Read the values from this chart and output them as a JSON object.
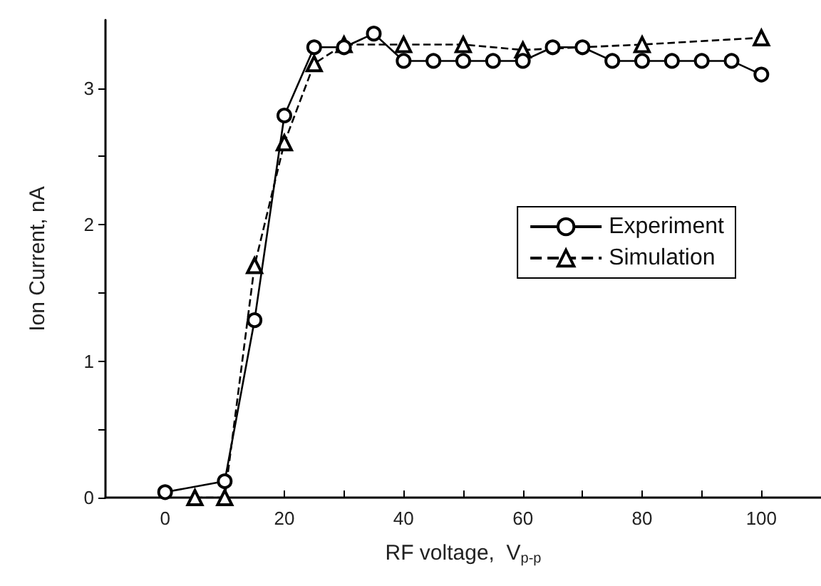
{
  "chart_data": {
    "type": "line",
    "xlabel": "RF voltage,  V$_{p-p}$",
    "ylabel": "Ion Current, nA",
    "xlim": [
      -10,
      110
    ],
    "ylim": [
      0,
      3.5
    ],
    "xticks": [
      0,
      {
        "value": 10,
        "label": null
      },
      20,
      {
        "value": 30,
        "label": null
      },
      40,
      {
        "value": 50,
        "label": null
      },
      60,
      {
        "value": 70,
        "label": null
      },
      80,
      {
        "value": 90,
        "label": null
      },
      100
    ],
    "yticks": [
      0,
      {
        "value": 0.5,
        "label": null
      },
      1,
      {
        "value": 1.5,
        "label": null
      },
      2,
      {
        "value": 2.5,
        "label": null
      },
      3
    ],
    "grid": false,
    "legend": "right",
    "series": [
      {
        "name": "Experiment",
        "color": "#000000",
        "marker": "circle",
        "line_style": "solid",
        "x": [
          0,
          10,
          15,
          20,
          25,
          30,
          35,
          40,
          45,
          50,
          55,
          60,
          65,
          70,
          75,
          80,
          85,
          90,
          95,
          100
        ],
        "values": [
          0.04,
          0.12,
          1.3,
          2.8,
          3.3,
          3.3,
          3.4,
          3.2,
          3.2,
          3.2,
          3.2,
          3.2,
          3.3,
          3.3,
          3.2,
          3.2,
          3.2,
          3.2,
          3.2,
          3.1
        ]
      },
      {
        "name": "Simulation",
        "color": "#000000",
        "marker": "triangle",
        "line_style": "dashed",
        "x": [
          5,
          10,
          15,
          20,
          25,
          30,
          40,
          50,
          60,
          80,
          100
        ],
        "values": [
          0,
          0,
          1.7,
          2.6,
          3.18,
          3.32,
          3.32,
          3.32,
          3.28,
          3.32,
          3.37
        ]
      }
    ]
  }
}
